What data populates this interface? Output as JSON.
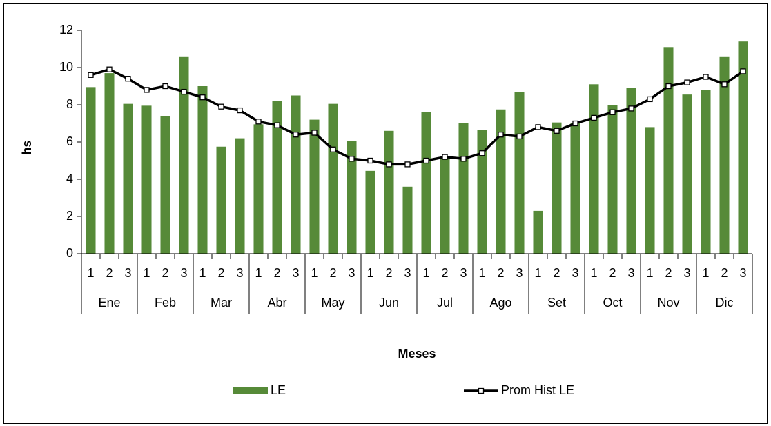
{
  "chart_data": {
    "type": "bar_line",
    "x_label": "Meses",
    "y_label": "hs",
    "categories": [
      "1",
      "2",
      "3",
      "1",
      "2",
      "3",
      "1",
      "2",
      "3",
      "1",
      "2",
      "3",
      "1",
      "2",
      "3",
      "1",
      "2",
      "3",
      "1",
      "2",
      "3",
      "1",
      "2",
      "3",
      "1",
      "2",
      "3",
      "1",
      "2",
      "3",
      "1",
      "2",
      "3",
      "1",
      "2",
      "3"
    ],
    "category_groups": [
      "Ene",
      "Feb",
      "Mar",
      "Abr",
      "May",
      "Jun",
      "Jul",
      "Ago",
      "Set",
      "Oct",
      "Nov",
      "Dic"
    ],
    "series": [
      {
        "name": "LE",
        "type": "bar",
        "color": "#568a38",
        "values": [
          8.95,
          9.7,
          8.05,
          7.95,
          7.4,
          10.6,
          9.0,
          5.75,
          6.2,
          6.95,
          8.2,
          8.5,
          7.2,
          8.05,
          6.05,
          4.45,
          6.6,
          3.6,
          7.6,
          5.2,
          7.0,
          6.65,
          7.75,
          8.7,
          2.3,
          7.05,
          7.0,
          9.1,
          8.0,
          8.9,
          6.8,
          11.1,
          8.55,
          8.8,
          10.6,
          11.4
        ]
      },
      {
        "name": "Prom Hist LE",
        "type": "line",
        "color": "#000000",
        "values": [
          9.6,
          9.9,
          9.4,
          8.8,
          9.0,
          8.7,
          8.4,
          7.9,
          7.7,
          7.1,
          6.9,
          6.4,
          6.5,
          5.6,
          5.1,
          5.0,
          4.8,
          4.8,
          5.0,
          5.2,
          5.1,
          5.4,
          6.4,
          6.3,
          6.8,
          6.6,
          7.0,
          7.3,
          7.6,
          7.8,
          8.3,
          9.0,
          9.2,
          9.5,
          9.1,
          9.8
        ]
      }
    ],
    "ylim": [
      0,
      12
    ],
    "yticks": [
      0,
      2,
      4,
      6,
      8,
      10,
      12
    ],
    "grid": false,
    "legend": "bottom"
  }
}
